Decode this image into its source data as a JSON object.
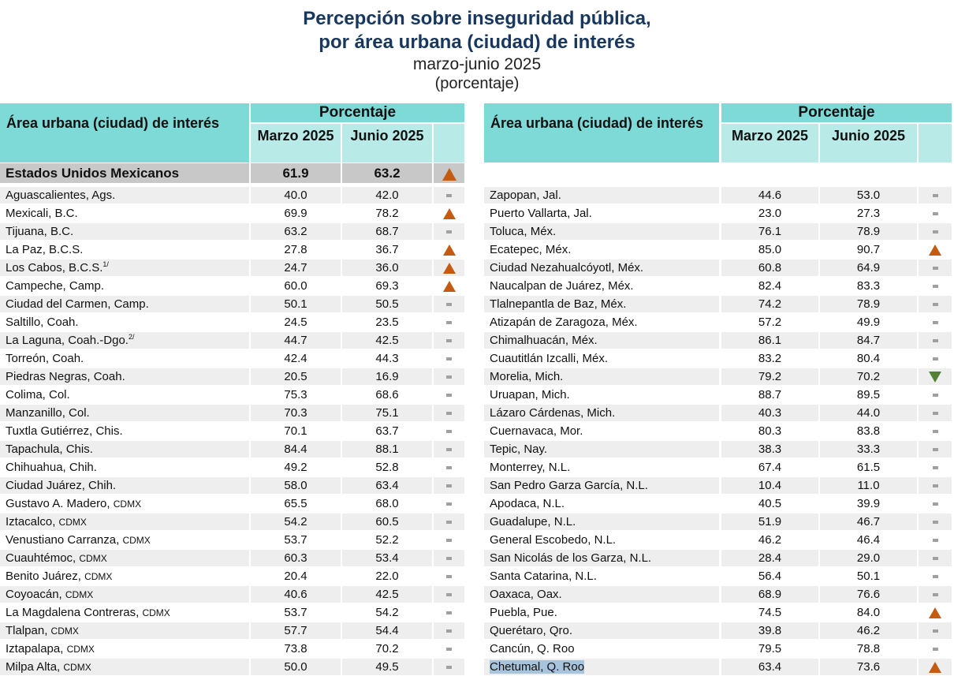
{
  "title": {
    "line1": "Percepción sobre inseguridad pública,",
    "line2": "por área urbana (ciudad) de interés",
    "period": "marzo-junio 2025",
    "unit": "(porcentaje)"
  },
  "header": {
    "city_col": "Área urbana (ciudad) de interés",
    "pct": "Porcentaje",
    "col1": "Marzo 2025",
    "col2": "Junio 2025"
  },
  "national": {
    "name": "Estados Unidos Mexicanos",
    "m": "61.9",
    "j": "63.2",
    "trend": "up"
  },
  "colors": {
    "teal": "#7ddad6",
    "teal_light": "#b8ebe8",
    "title": "#17375e",
    "up": "#c55a11",
    "down": "#548235"
  },
  "left": [
    {
      "name": "Aguascalientes, Ags.",
      "m": "40.0",
      "j": "42.0",
      "trend": "none"
    },
    {
      "name": "Mexicali, B.C.",
      "m": "69.9",
      "j": "78.2",
      "trend": "up"
    },
    {
      "name": "Tijuana, B.C.",
      "m": "63.2",
      "j": "68.7",
      "trend": "none"
    },
    {
      "name": "La Paz, B.C.S.",
      "m": "27.8",
      "j": "36.7",
      "trend": "up"
    },
    {
      "name": "Los Cabos, B.C.S.",
      "note": "1/",
      "m": "24.7",
      "j": "36.0",
      "trend": "up"
    },
    {
      "name": "Campeche, Camp.",
      "m": "60.0",
      "j": "69.3",
      "trend": "up"
    },
    {
      "name": "Ciudad del Carmen, Camp.",
      "m": "50.1",
      "j": "50.5",
      "trend": "none"
    },
    {
      "name": "Saltillo, Coah.",
      "m": "24.5",
      "j": "23.5",
      "trend": "none"
    },
    {
      "name": "La Laguna, Coah.-Dgo.",
      "note": "2/",
      "m": "44.7",
      "j": "42.5",
      "trend": "none"
    },
    {
      "name": "Torreón, Coah.",
      "m": "42.4",
      "j": "44.3",
      "trend": "none"
    },
    {
      "name": "Piedras Negras, Coah.",
      "m": "20.5",
      "j": "16.9",
      "trend": "none"
    },
    {
      "name": "Colima, Col.",
      "m": "75.3",
      "j": "68.6",
      "trend": "none"
    },
    {
      "name": "Manzanillo, Col.",
      "m": "70.3",
      "j": "75.1",
      "trend": "none"
    },
    {
      "name": "Tuxtla Gutiérrez, Chis.",
      "m": "70.1",
      "j": "63.7",
      "trend": "none"
    },
    {
      "name": "Tapachula, Chis.",
      "m": "84.4",
      "j": "88.1",
      "trend": "none"
    },
    {
      "name": "Chihuahua, Chih.",
      "m": "49.2",
      "j": "52.8",
      "trend": "none"
    },
    {
      "name": "Ciudad Juárez, Chih.",
      "m": "58.0",
      "j": "63.4",
      "trend": "none"
    },
    {
      "name": "Gustavo A. Madero,",
      "suffix": "CDMX",
      "m": "65.5",
      "j": "68.0",
      "trend": "none"
    },
    {
      "name": "Iztacalco,",
      "suffix": "CDMX",
      "m": "54.2",
      "j": "60.5",
      "trend": "none"
    },
    {
      "name": "Venustiano Carranza,",
      "suffix": "CDMX",
      "m": "53.7",
      "j": "52.2",
      "trend": "none"
    },
    {
      "name": "Cuauhtémoc,",
      "suffix": "CDMX",
      "m": "60.3",
      "j": "53.4",
      "trend": "none"
    },
    {
      "name": "Benito Juárez,",
      "suffix": "CDMX",
      "m": "20.4",
      "j": "22.0",
      "trend": "none"
    },
    {
      "name": "Coyoacán,",
      "suffix": "CDMX",
      "m": "40.6",
      "j": "42.5",
      "trend": "none"
    },
    {
      "name": "La Magdalena Contreras,",
      "suffix": "CDMX",
      "m": "53.7",
      "j": "54.2",
      "trend": "none"
    },
    {
      "name": "Tlalpan,",
      "suffix": "CDMX",
      "m": "57.7",
      "j": "54.4",
      "trend": "none"
    },
    {
      "name": "Iztapalapa,",
      "suffix": "CDMX",
      "m": "73.8",
      "j": "70.2",
      "trend": "none"
    },
    {
      "name": "Milpa Alta,",
      "suffix": "CDMX",
      "m": "50.0",
      "j": "49.5",
      "trend": "none"
    }
  ],
  "right": [
    {
      "name": "Zapopan, Jal.",
      "m": "44.6",
      "j": "53.0",
      "trend": "none"
    },
    {
      "name": "Puerto Vallarta, Jal.",
      "m": "23.0",
      "j": "27.3",
      "trend": "none"
    },
    {
      "name": "Toluca, Méx.",
      "m": "76.1",
      "j": "78.9",
      "trend": "none"
    },
    {
      "name": "Ecatepec, Méx.",
      "m": "85.0",
      "j": "90.7",
      "trend": "up"
    },
    {
      "name": "Ciudad Nezahualcóyotl, Méx.",
      "m": "60.8",
      "j": "64.9",
      "trend": "none"
    },
    {
      "name": "Naucalpan de Juárez, Méx.",
      "m": "82.4",
      "j": "83.3",
      "trend": "none"
    },
    {
      "name": "Tlalnepantla de Baz, Méx.",
      "m": "74.2",
      "j": "78.9",
      "trend": "none"
    },
    {
      "name": "Atizapán de Zaragoza, Méx.",
      "m": "57.2",
      "j": "49.9",
      "trend": "none"
    },
    {
      "name": "Chimalhuacán, Méx.",
      "m": "86.1",
      "j": "84.7",
      "trend": "none"
    },
    {
      "name": "Cuautitlán Izcalli, Méx.",
      "m": "83.2",
      "j": "80.4",
      "trend": "none"
    },
    {
      "name": "Morelia, Mich.",
      "m": "79.2",
      "j": "70.2",
      "trend": "down"
    },
    {
      "name": "Uruapan, Mich.",
      "m": "88.7",
      "j": "89.5",
      "trend": "none"
    },
    {
      "name": "Lázaro Cárdenas, Mich.",
      "m": "40.3",
      "j": "44.0",
      "trend": "none"
    },
    {
      "name": "Cuernavaca, Mor.",
      "m": "80.3",
      "j": "83.8",
      "trend": "none"
    },
    {
      "name": "Tepic, Nay.",
      "m": "38.3",
      "j": "33.3",
      "trend": "none"
    },
    {
      "name": "Monterrey, N.L.",
      "m": "67.4",
      "j": "61.5",
      "trend": "none"
    },
    {
      "name": "San Pedro Garza García, N.L.",
      "m": "10.4",
      "j": "11.0",
      "trend": "none"
    },
    {
      "name": "Apodaca, N.L.",
      "m": "40.5",
      "j": "39.9",
      "trend": "none"
    },
    {
      "name": "Guadalupe, N.L.",
      "m": "51.9",
      "j": "46.7",
      "trend": "none"
    },
    {
      "name": "General Escobedo, N.L.",
      "m": "46.2",
      "j": "46.4",
      "trend": "none"
    },
    {
      "name": "San Nicolás de los Garza, N.L.",
      "m": "28.4",
      "j": "29.0",
      "trend": "none"
    },
    {
      "name": "Santa Catarina, N.L.",
      "m": "56.4",
      "j": "50.1",
      "trend": "none"
    },
    {
      "name": "Oaxaca, Oax.",
      "m": "68.9",
      "j": "76.6",
      "trend": "none"
    },
    {
      "name": "Puebla, Pue.",
      "m": "74.5",
      "j": "84.0",
      "trend": "up"
    },
    {
      "name": "Querétaro, Qro.",
      "m": "39.8",
      "j": "46.2",
      "trend": "none"
    },
    {
      "name": "Cancún, Q. Roo",
      "m": "79.5",
      "j": "78.8",
      "trend": "none"
    },
    {
      "name": "Chetumal, Q. Roo",
      "m": "63.4",
      "j": "73.6",
      "trend": "up",
      "selected": true
    }
  ]
}
